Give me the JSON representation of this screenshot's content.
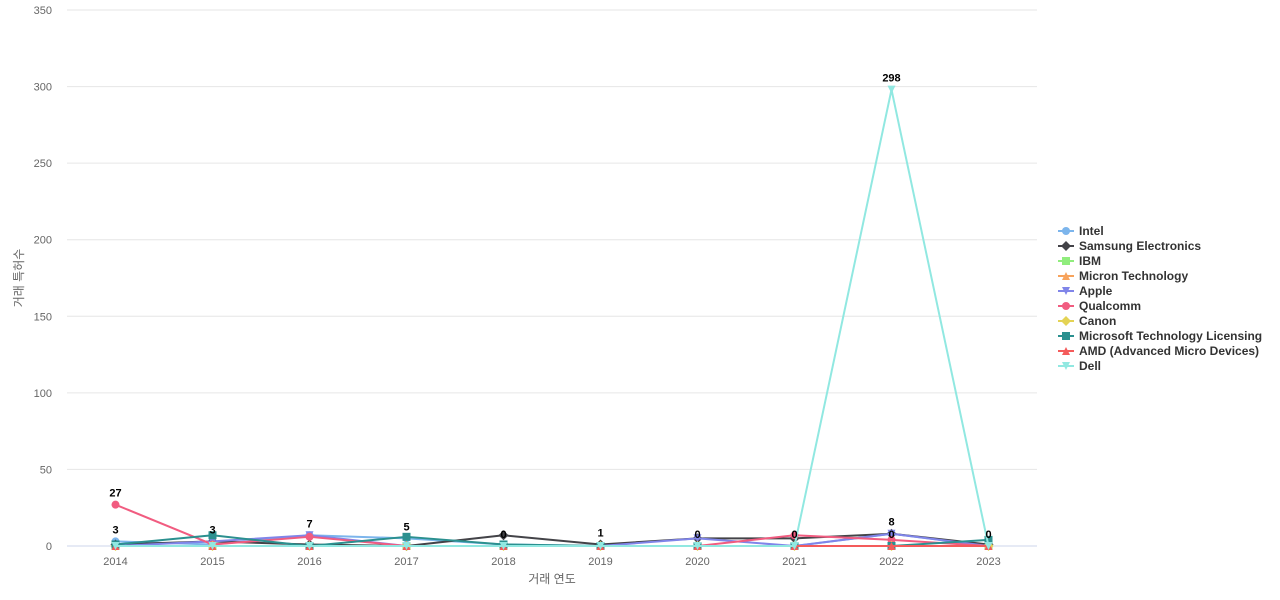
{
  "chart_data": {
    "type": "line",
    "title": "",
    "xlabel": "거래 연도",
    "ylabel": "거래 특허수",
    "categories": [
      "2014",
      "2015",
      "2016",
      "2017",
      "2018",
      "2019",
      "2020",
      "2021",
      "2022",
      "2023"
    ],
    "ylim": [
      0,
      350
    ],
    "yticks": [
      0,
      50,
      100,
      150,
      200,
      250,
      300,
      350
    ],
    "grid": true,
    "legend_position": "right",
    "series": [
      {
        "name": "Intel",
        "color": "#7cb5ec",
        "marker": "circle",
        "values": [
          3,
          1,
          7,
          5,
          1,
          0,
          0,
          0,
          8,
          0
        ]
      },
      {
        "name": "Samsung Electronics",
        "color": "#434348",
        "marker": "diamond",
        "values": [
          1,
          3,
          1,
          0,
          7,
          1,
          5,
          5,
          8,
          1
        ]
      },
      {
        "name": "IBM",
        "color": "#90ed7d",
        "marker": "square",
        "values": [
          0,
          0,
          0,
          0,
          0,
          0,
          0,
          0,
          0,
          0
        ]
      },
      {
        "name": "Micron Technology",
        "color": "#f7a35c",
        "marker": "triangle",
        "values": [
          0,
          0,
          0,
          0,
          0,
          0,
          0,
          0,
          0,
          0
        ]
      },
      {
        "name": "Apple",
        "color": "#8085e9",
        "marker": "triangle-down",
        "values": [
          0,
          3,
          7,
          0,
          0,
          0,
          5,
          0,
          8,
          0
        ]
      },
      {
        "name": "Qualcomm",
        "color": "#f15c80",
        "marker": "circle",
        "values": [
          27,
          1,
          6,
          0,
          0,
          0,
          0,
          7,
          4,
          0
        ]
      },
      {
        "name": "Canon",
        "color": "#e4d354",
        "marker": "diamond",
        "values": [
          0,
          0,
          0,
          0,
          0,
          0,
          0,
          0,
          0,
          0
        ]
      },
      {
        "name": "Microsoft Technology Licensing",
        "color": "#2b908f",
        "marker": "square",
        "values": [
          1,
          7,
          0,
          6,
          1,
          0,
          0,
          0,
          0,
          4
        ]
      },
      {
        "name": "AMD (Advanced Micro Devices)",
        "color": "#f45b5b",
        "marker": "triangle",
        "values": [
          0,
          0,
          0,
          0,
          0,
          0,
          0,
          0,
          0,
          0
        ]
      },
      {
        "name": "Dell",
        "color": "#91e8e1",
        "marker": "triangle-down",
        "values": [
          0,
          0,
          0,
          0,
          0,
          0,
          0,
          0,
          298,
          0
        ]
      }
    ],
    "data_labels": [
      {
        "category": "2014",
        "value": 27,
        "text": "27"
      },
      {
        "category": "2014",
        "value": 3,
        "text": "3"
      },
      {
        "category": "2015",
        "value": 3,
        "text": "3"
      },
      {
        "category": "2016",
        "value": 7,
        "text": "7"
      },
      {
        "category": "2017",
        "value": 5,
        "text": "5"
      },
      {
        "category": "2018",
        "value": 0,
        "text": "0"
      },
      {
        "category": "2019",
        "value": 1,
        "text": "1"
      },
      {
        "category": "2020",
        "value": 0,
        "text": "0"
      },
      {
        "category": "2021",
        "value": 0,
        "text": "0"
      },
      {
        "category": "2022",
        "value": 298,
        "text": "298"
      },
      {
        "category": "2022",
        "value": 8,
        "text": "8"
      },
      {
        "category": "2022",
        "value": 0,
        "text": "0"
      },
      {
        "category": "2023",
        "value": 0,
        "text": "0"
      }
    ]
  }
}
